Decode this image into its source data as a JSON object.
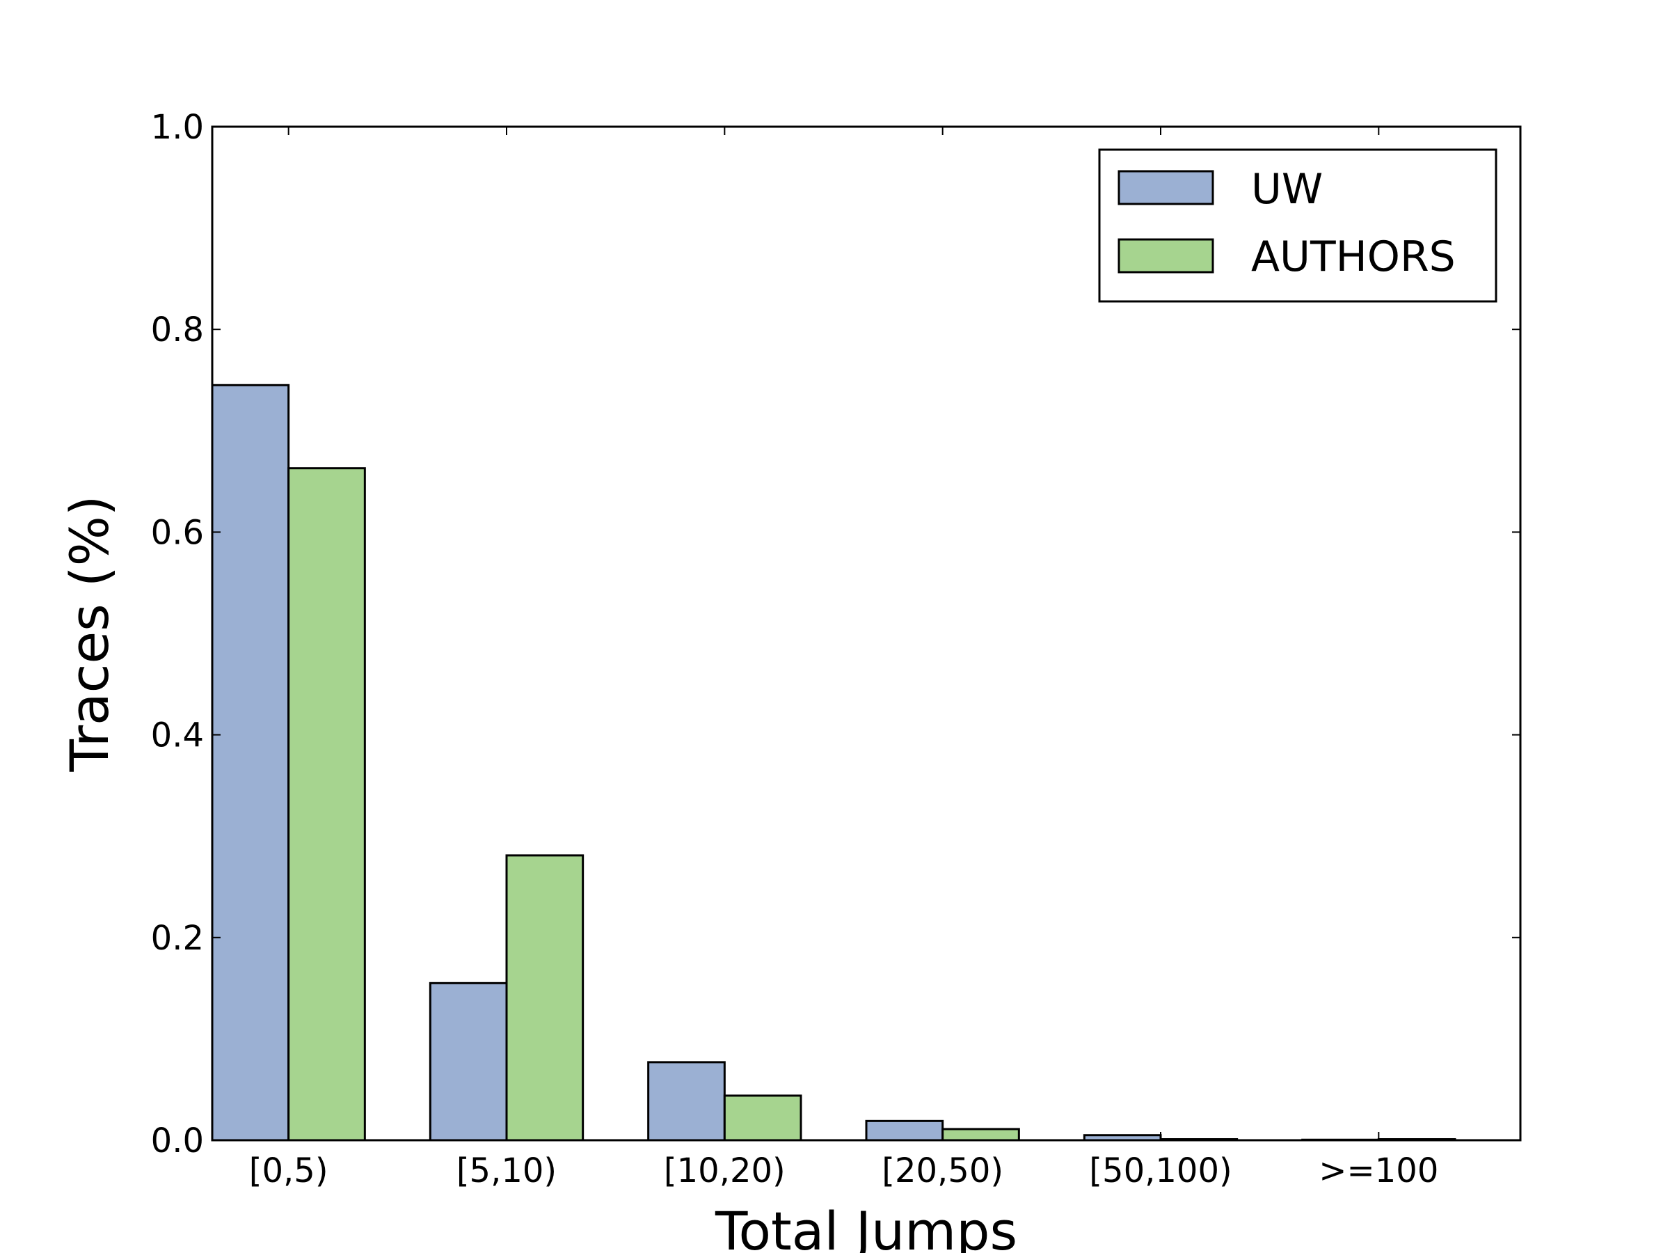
{
  "chart_data": {
    "type": "bar",
    "title": "",
    "xlabel": "Total Jumps",
    "ylabel": "Traces (%)",
    "categories": [
      "[0,5)",
      "[5,10)",
      "[10,20)",
      "[20,50)",
      "[50,100)",
      ">=100"
    ],
    "series": [
      {
        "name": "UW",
        "color": "#9bb0d3",
        "values": [
          0.745,
          0.155,
          0.077,
          0.019,
          0.005,
          0.0005
        ]
      },
      {
        "name": "AUTHORS",
        "color": "#a6d48f",
        "values": [
          0.663,
          0.281,
          0.044,
          0.011,
          0.001,
          0.001
        ]
      }
    ],
    "ylim": [
      0,
      1.0
    ],
    "yticks": [
      "0.0",
      "0.2",
      "0.4",
      "0.6",
      "0.8",
      "1.0"
    ],
    "grid": false,
    "legend_position": "top-right"
  }
}
